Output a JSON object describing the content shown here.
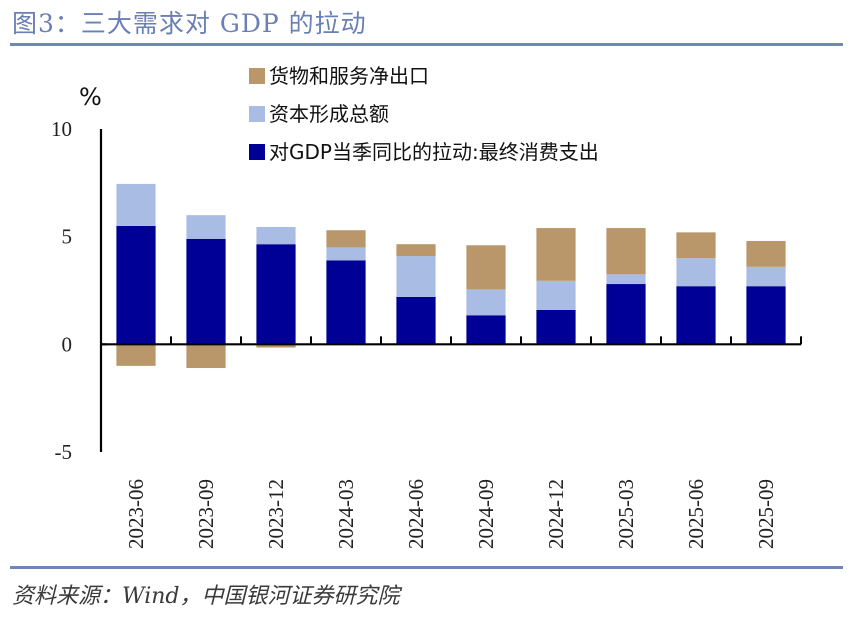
{
  "title": "图3：三大需求对 GDP 的拉动",
  "source": "资料来源：Wind，中国银河证券研究院",
  "chart_data": {
    "type": "bar",
    "stacked": true,
    "title": "图3：三大需求对 GDP 的拉动",
    "xlabel": "",
    "ylabel": "%",
    "ylim": [
      -5,
      10
    ],
    "yticks": [
      10,
      5,
      0,
      -5
    ],
    "grid": false,
    "legend_position": "top-center",
    "categories": [
      "2023-06",
      "2023-09",
      "2023-12",
      "2024-03",
      "2024-06",
      "2024-09",
      "2024-12",
      "2025-03",
      "2025-06",
      "2025-09"
    ],
    "series": [
      {
        "name": "对GDP当季同比的拉动:最终消费支出",
        "color": "#000096",
        "values": [
          5.5,
          4.9,
          4.65,
          3.9,
          2.2,
          1.35,
          1.6,
          2.8,
          2.7,
          2.7
        ]
      },
      {
        "name": "资本形成总额",
        "color": "#a9bde4",
        "values": [
          1.95,
          1.1,
          0.8,
          0.6,
          1.9,
          1.2,
          1.35,
          0.45,
          1.3,
          0.9
        ]
      },
      {
        "name": "货物和服务净出口",
        "color": "#b9976a",
        "values": [
          -1.0,
          -1.1,
          -0.15,
          0.8,
          0.55,
          2.05,
          2.45,
          2.15,
          1.2,
          1.2
        ]
      }
    ],
    "legend": [
      {
        "name": "货物和服务净出口",
        "color": "#b9976a"
      },
      {
        "name": "资本形成总额",
        "color": "#a9bde4"
      },
      {
        "name": "对GDP当季同比的拉动:最终消费支出",
        "color": "#000096"
      }
    ]
  }
}
